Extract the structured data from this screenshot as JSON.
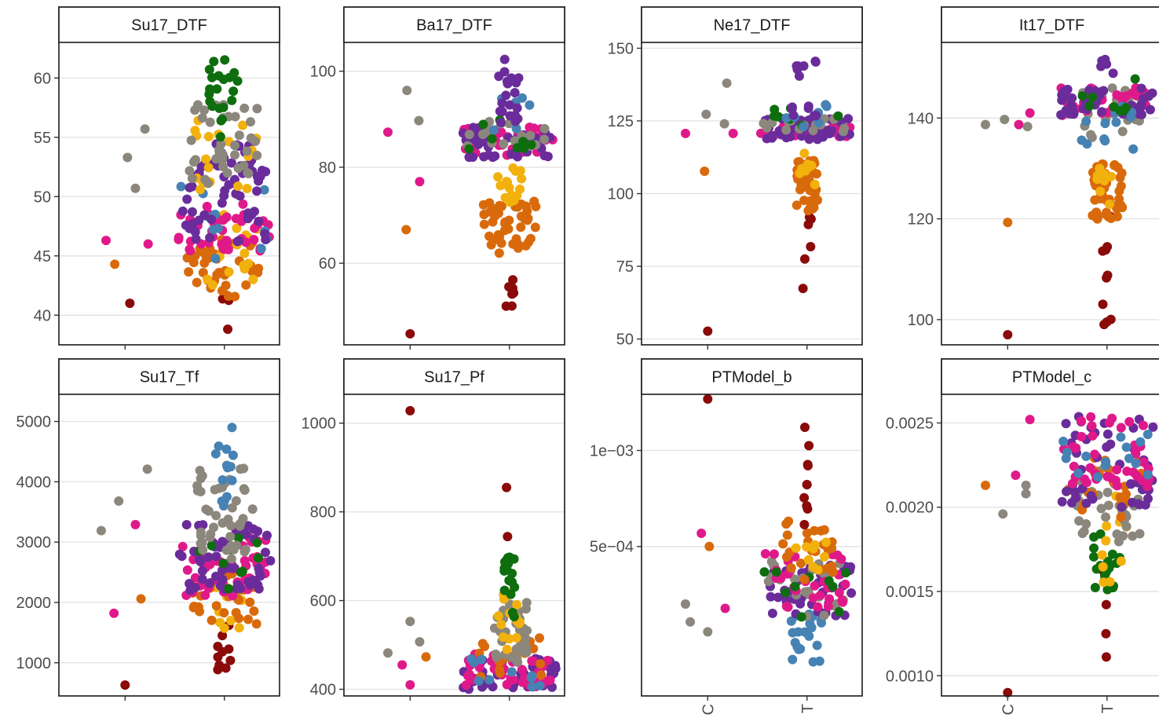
{
  "colors": {
    "grey": "#8C877C",
    "purple": "#6A2C9A",
    "magenta": "#E0198A",
    "orange": "#D96A0B",
    "gold": "#F2B10C",
    "darkred": "#8B0A0A",
    "green": "#0E6E0E",
    "blue": "#4682B4"
  },
  "chart_data": [
    {
      "type": "scatter",
      "title": "Su17_DTF",
      "categories": [
        "C",
        "T"
      ],
      "yticks": [
        40,
        45,
        50,
        55,
        60
      ],
      "ytick_labels": [
        "40",
        "45",
        "50",
        "55",
        "60"
      ],
      "ylim": [
        37.5,
        63
      ],
      "log": false,
      "show_x_labels": false,
      "control_points": [
        {
          "x": 0.76,
          "y": 46.3,
          "c": "magenta"
        },
        {
          "x": 0.87,
          "y": 44.3,
          "c": "orange"
        },
        {
          "x": 1.03,
          "y": 53.3,
          "c": "grey"
        },
        {
          "x": 1.06,
          "y": 41.0,
          "c": "darkred"
        },
        {
          "x": 1.13,
          "y": 50.7,
          "c": "grey"
        },
        {
          "x": 1.25,
          "y": 55.7,
          "c": "grey"
        },
        {
          "x": 1.29,
          "y": 46.0,
          "c": "magenta"
        }
      ],
      "treatment": {
        "bands": [
          {
            "from": 37.9,
            "to": 43.2,
            "c": "darkred",
            "n": 5,
            "w": 0.04
          },
          {
            "from": 41.5,
            "to": 46.5,
            "c": "orange",
            "n": 40,
            "w": 0.34
          },
          {
            "from": 42.5,
            "to": 48.5,
            "c": "gold",
            "n": 15,
            "w": 0.3
          },
          {
            "from": 45.0,
            "to": 49.5,
            "c": "magenta",
            "n": 40,
            "w": 0.42
          },
          {
            "from": 44.5,
            "to": 51.0,
            "c": "blue",
            "n": 12,
            "w": 0.42
          },
          {
            "from": 46.0,
            "to": 54.5,
            "c": "purple",
            "n": 60,
            "w": 0.38
          },
          {
            "from": 50.5,
            "to": 57.5,
            "c": "gold",
            "n": 18,
            "w": 0.3
          },
          {
            "from": 51.0,
            "to": 58.0,
            "c": "grey",
            "n": 40,
            "w": 0.32
          },
          {
            "from": 55.0,
            "to": 61.8,
            "c": "green",
            "n": 22,
            "w": 0.14
          }
        ]
      }
    },
    {
      "type": "scatter",
      "title": "Ba17_DTF",
      "categories": [
        "C",
        "T"
      ],
      "yticks": [
        60,
        80,
        100
      ],
      "ytick_labels": [
        "60",
        "80",
        "100"
      ],
      "ylim": [
        43,
        106
      ],
      "log": false,
      "show_x_labels": false,
      "control_points": [
        {
          "x": 0.72,
          "y": 87.3,
          "c": "magenta"
        },
        {
          "x": 0.95,
          "y": 67.0,
          "c": "orange"
        },
        {
          "x": 0.96,
          "y": 96.0,
          "c": "grey"
        },
        {
          "x": 1.0,
          "y": 45.3,
          "c": "darkred"
        },
        {
          "x": 1.11,
          "y": 89.7,
          "c": "grey"
        },
        {
          "x": 1.12,
          "y": 77.0,
          "c": "magenta"
        }
      ],
      "treatment": {
        "bands": [
          {
            "from": 50.3,
            "to": 61.0,
            "c": "darkred",
            "n": 7,
            "w": 0.04
          },
          {
            "from": 62.0,
            "to": 73.0,
            "c": "orange",
            "n": 45,
            "w": 0.24
          },
          {
            "from": 72.0,
            "to": 80.0,
            "c": "gold",
            "n": 15,
            "w": 0.12
          },
          {
            "from": 82.5,
            "to": 88.5,
            "c": "magenta",
            "n": 35,
            "w": 0.42
          },
          {
            "from": 82.0,
            "to": 89.0,
            "c": "purple",
            "n": 40,
            "w": 0.42
          },
          {
            "from": 84.0,
            "to": 90.0,
            "c": "grey",
            "n": 18,
            "w": 0.4
          },
          {
            "from": 82.5,
            "to": 90.0,
            "c": "green",
            "n": 8,
            "w": 0.4
          },
          {
            "from": 86.0,
            "to": 95.0,
            "c": "blue",
            "n": 6,
            "w": 0.2
          },
          {
            "from": 89.0,
            "to": 103.5,
            "c": "purple",
            "n": 20,
            "w": 0.1
          }
        ]
      }
    },
    {
      "type": "scatter",
      "title": "Ne17_DTF",
      "categories": [
        "C",
        "T"
      ],
      "yticks": [
        50,
        75,
        100,
        125,
        150
      ],
      "ytick_labels": [
        "50",
        "75",
        "100",
        "125",
        "150"
      ],
      "ylim": [
        48,
        152
      ],
      "log": false,
      "show_x_labels": false,
      "control_points": [
        {
          "x": 0.72,
          "y": 120.7,
          "c": "magenta"
        },
        {
          "x": 0.96,
          "y": 107.7,
          "c": "orange"
        },
        {
          "x": 0.98,
          "y": 127.3,
          "c": "grey"
        },
        {
          "x": 1.0,
          "y": 52.7,
          "c": "darkred"
        },
        {
          "x": 1.21,
          "y": 124.0,
          "c": "grey"
        },
        {
          "x": 1.24,
          "y": 138.0,
          "c": "grey"
        },
        {
          "x": 1.32,
          "y": 120.7,
          "c": "magenta"
        }
      ],
      "treatment": {
        "bands": [
          {
            "from": 67.0,
            "to": 92.0,
            "c": "darkred",
            "n": 6,
            "w": 0.04
          },
          {
            "from": 94.0,
            "to": 112.0,
            "c": "orange",
            "n": 40,
            "w": 0.1
          },
          {
            "from": 100.0,
            "to": 115.0,
            "c": "gold",
            "n": 8,
            "w": 0.08
          },
          {
            "from": 119.5,
            "to": 125.0,
            "c": "magenta",
            "n": 35,
            "w": 0.42
          },
          {
            "from": 118.5,
            "to": 126.0,
            "c": "purple",
            "n": 45,
            "w": 0.42
          },
          {
            "from": 121.0,
            "to": 126.0,
            "c": "grey",
            "n": 15,
            "w": 0.4
          },
          {
            "from": 121.0,
            "to": 130.0,
            "c": "green",
            "n": 8,
            "w": 0.3
          },
          {
            "from": 121.0,
            "to": 132.0,
            "c": "blue",
            "n": 8,
            "w": 0.2
          },
          {
            "from": 126.0,
            "to": 147.5,
            "c": "purple",
            "n": 15,
            "w": 0.14
          }
        ]
      }
    },
    {
      "type": "scatter",
      "title": "It17_DTF",
      "categories": [
        "C",
        "T"
      ],
      "yticks": [
        100,
        120,
        140
      ],
      "ytick_labels": [
        "100",
        "120",
        "140"
      ],
      "ylim": [
        95,
        155
      ],
      "log": false,
      "show_x_labels": false,
      "control_points": [
        {
          "x": 0.72,
          "y": 138.7,
          "c": "grey"
        },
        {
          "x": 0.96,
          "y": 139.7,
          "c": "grey"
        },
        {
          "x": 1.0,
          "y": 119.3,
          "c": "orange"
        },
        {
          "x": 1.0,
          "y": 97.0,
          "c": "darkred"
        },
        {
          "x": 1.14,
          "y": 138.7,
          "c": "magenta"
        },
        {
          "x": 1.25,
          "y": 138.3,
          "c": "grey"
        },
        {
          "x": 1.28,
          "y": 141.0,
          "c": "magenta"
        }
      ],
      "treatment": {
        "bands": [
          {
            "from": 98.7,
            "to": 122.0,
            "c": "darkred",
            "n": 10,
            "w": 0.04
          },
          {
            "from": 119.0,
            "to": 131.0,
            "c": "orange",
            "n": 40,
            "w": 0.14
          },
          {
            "from": 122.0,
            "to": 130.0,
            "c": "gold",
            "n": 8,
            "w": 0.1
          },
          {
            "from": 136.0,
            "to": 146.0,
            "c": "grey",
            "n": 30,
            "w": 0.36
          },
          {
            "from": 140.5,
            "to": 146.0,
            "c": "magenta",
            "n": 40,
            "w": 0.42
          },
          {
            "from": 140.0,
            "to": 146.0,
            "c": "purple",
            "n": 45,
            "w": 0.42
          },
          {
            "from": 132.0,
            "to": 143.0,
            "c": "blue",
            "n": 12,
            "w": 0.24
          },
          {
            "from": 141.0,
            "to": 148.0,
            "c": "green",
            "n": 8,
            "w": 0.3
          },
          {
            "from": 146.0,
            "to": 152.5,
            "c": "purple",
            "n": 6,
            "w": 0.06
          }
        ]
      }
    },
    {
      "type": "scatter",
      "title": "Su17_Tf",
      "categories": [
        "C",
        "T"
      ],
      "yticks": [
        1000,
        2000,
        3000,
        4000,
        5000
      ],
      "ytick_labels": [
        "1000",
        "2000",
        "3000",
        "4000",
        "5000"
      ],
      "ylim": [
        450,
        5450
      ],
      "log": false,
      "show_x_labels": false,
      "control_points": [
        {
          "x": 0.7,
          "y": 3190,
          "c": "grey"
        },
        {
          "x": 0.86,
          "y": 1820,
          "c": "magenta"
        },
        {
          "x": 0.92,
          "y": 3680,
          "c": "grey"
        },
        {
          "x": 1.0,
          "y": 630,
          "c": "darkred"
        },
        {
          "x": 1.13,
          "y": 3290,
          "c": "magenta"
        },
        {
          "x": 1.2,
          "y": 2060,
          "c": "orange"
        },
        {
          "x": 1.28,
          "y": 4210,
          "c": "grey"
        }
      ],
      "treatment": {
        "bands": [
          {
            "from": 790,
            "to": 1700,
            "c": "darkred",
            "n": 10,
            "w": 0.06
          },
          {
            "from": 1550,
            "to": 2300,
            "c": "gold",
            "n": 12,
            "w": 0.18
          },
          {
            "from": 1600,
            "to": 2500,
            "c": "orange",
            "n": 30,
            "w": 0.3
          },
          {
            "from": 2100,
            "to": 3100,
            "c": "magenta",
            "n": 50,
            "w": 0.42
          },
          {
            "from": 2200,
            "to": 3300,
            "c": "purple",
            "n": 55,
            "w": 0.42
          },
          {
            "from": 2000,
            "to": 3200,
            "c": "green",
            "n": 10,
            "w": 0.4
          },
          {
            "from": 2700,
            "to": 4250,
            "c": "grey",
            "n": 45,
            "w": 0.26
          },
          {
            "from": 3600,
            "to": 5230,
            "c": "blue",
            "n": 14,
            "w": 0.08
          }
        ]
      }
    },
    {
      "type": "scatter",
      "title": "Su17_Pf",
      "categories": [
        "C",
        "T"
      ],
      "yticks": [
        400,
        600,
        800,
        1000
      ],
      "ytick_labels": [
        "400",
        "600",
        "800",
        "1000"
      ],
      "ylim": [
        385,
        1065
      ],
      "log": false,
      "show_x_labels": false,
      "control_points": [
        {
          "x": 0.72,
          "y": 482,
          "c": "grey"
        },
        {
          "x": 0.9,
          "y": 455,
          "c": "magenta"
        },
        {
          "x": 1.0,
          "y": 410,
          "c": "magenta"
        },
        {
          "x": 1.0,
          "y": 1028,
          "c": "darkred"
        },
        {
          "x": 1.0,
          "y": 553,
          "c": "grey"
        },
        {
          "x": 1.12,
          "y": 507,
          "c": "grey"
        },
        {
          "x": 1.2,
          "y": 473,
          "c": "orange"
        }
      ],
      "treatment": {
        "bands": [
          {
            "from": 400,
            "to": 470,
            "c": "purple",
            "n": 45,
            "w": 0.42
          },
          {
            "from": 405,
            "to": 480,
            "c": "magenta",
            "n": 40,
            "w": 0.4
          },
          {
            "from": 420,
            "to": 520,
            "c": "orange",
            "n": 20,
            "w": 0.3
          },
          {
            "from": 400,
            "to": 470,
            "c": "blue",
            "n": 12,
            "w": 0.35
          },
          {
            "from": 460,
            "to": 600,
            "c": "grey",
            "n": 35,
            "w": 0.16
          },
          {
            "from": 480,
            "to": 620,
            "c": "gold",
            "n": 18,
            "w": 0.1
          },
          {
            "from": 560,
            "to": 700,
            "c": "green",
            "n": 18,
            "w": 0.06
          },
          {
            "from": 564,
            "to": 887,
            "c": "darkred",
            "n": 2,
            "w": 0.04
          }
        ]
      }
    },
    {
      "type": "scatter",
      "title": "PTModel_b",
      "categories": [
        "C",
        "T"
      ],
      "yticks": [
        0.0005,
        0.001
      ],
      "ytick_labels": [
        "5e−04",
        "1e−03"
      ],
      "ylim": [
        0.00017,
        0.0015
      ],
      "log": true,
      "show_x_labels": true,
      "control_points": [
        {
          "x": 0.72,
          "y": 0.00033,
          "c": "grey"
        },
        {
          "x": 0.78,
          "y": 0.00029,
          "c": "grey"
        },
        {
          "x": 0.92,
          "y": 0.00055,
          "c": "magenta"
        },
        {
          "x": 1.0,
          "y": 0.00027,
          "c": "grey"
        },
        {
          "x": 1.0,
          "y": 0.00145,
          "c": "darkred"
        },
        {
          "x": 1.02,
          "y": 0.0005,
          "c": "orange"
        },
        {
          "x": 1.22,
          "y": 0.00032,
          "c": "magenta"
        }
      ],
      "treatment": {
        "bands": [
          {
            "from": 0.00021,
            "to": 0.00031,
            "c": "blue",
            "n": 20,
            "w": 0.16
          },
          {
            "from": 0.0003,
            "to": 0.00044,
            "c": "purple",
            "n": 45,
            "w": 0.42
          },
          {
            "from": 0.0003,
            "to": 0.00045,
            "c": "grey",
            "n": 25,
            "w": 0.36
          },
          {
            "from": 0.00032,
            "to": 0.00048,
            "c": "magenta",
            "n": 30,
            "w": 0.38
          },
          {
            "from": 0.0003,
            "to": 0.00042,
            "c": "green",
            "n": 10,
            "w": 0.4
          },
          {
            "from": 0.00038,
            "to": 0.0006,
            "c": "orange",
            "n": 25,
            "w": 0.24
          },
          {
            "from": 0.0004,
            "to": 0.00058,
            "c": "gold",
            "n": 10,
            "w": 0.2
          },
          {
            "from": 0.00058,
            "to": 0.0012,
            "c": "darkred",
            "n": 10,
            "w": 0.03
          }
        ]
      }
    },
    {
      "type": "scatter",
      "title": "PTModel_c",
      "categories": [
        "C",
        "T"
      ],
      "yticks": [
        0.001,
        0.0015,
        0.002,
        0.0025
      ],
      "ytick_labels": [
        "0.0010",
        "0.0015",
        "0.0020",
        "0.0025"
      ],
      "ylim": [
        0.00088,
        0.00267
      ],
      "log": false,
      "show_x_labels": true,
      "control_points": [
        {
          "x": 0.72,
          "y": 0.00213,
          "c": "orange"
        },
        {
          "x": 0.94,
          "y": 0.00196,
          "c": "grey"
        },
        {
          "x": 1.0,
          "y": 0.0009,
          "c": "darkred"
        },
        {
          "x": 1.1,
          "y": 0.00219,
          "c": "magenta"
        },
        {
          "x": 1.23,
          "y": 0.00208,
          "c": "grey"
        },
        {
          "x": 1.23,
          "y": 0.00213,
          "c": "grey"
        },
        {
          "x": 1.28,
          "y": 0.00252,
          "c": "magenta"
        }
      ],
      "treatment": {
        "bands": [
          {
            "from": 0.0011,
            "to": 0.00165,
            "c": "darkred",
            "n": 5,
            "w": 0.04
          },
          {
            "from": 0.0015,
            "to": 0.00185,
            "c": "green",
            "n": 20,
            "w": 0.12
          },
          {
            "from": 0.0015,
            "to": 0.0021,
            "c": "gold",
            "n": 12,
            "w": 0.18
          },
          {
            "from": 0.00175,
            "to": 0.00225,
            "c": "grey",
            "n": 35,
            "w": 0.3
          },
          {
            "from": 0.0019,
            "to": 0.0023,
            "c": "orange",
            "n": 20,
            "w": 0.36
          },
          {
            "from": 0.002,
            "to": 0.00255,
            "c": "purple",
            "n": 45,
            "w": 0.42
          },
          {
            "from": 0.0021,
            "to": 0.00255,
            "c": "magenta",
            "n": 40,
            "w": 0.42
          },
          {
            "from": 0.0021,
            "to": 0.00258,
            "c": "blue",
            "n": 15,
            "w": 0.4
          }
        ]
      }
    }
  ]
}
